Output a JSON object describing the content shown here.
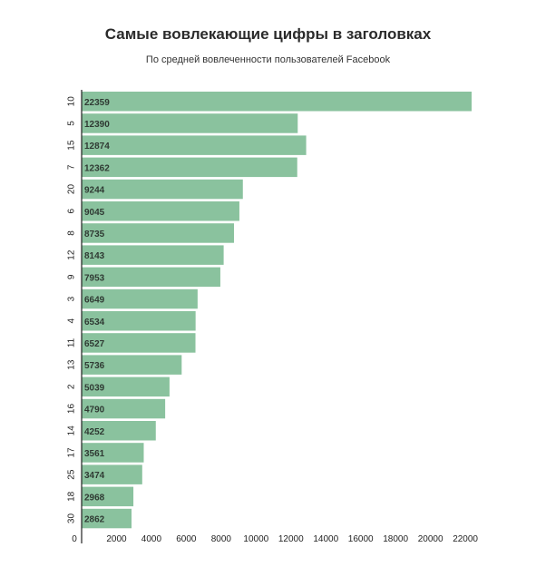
{
  "chart_data": {
    "type": "bar",
    "orientation": "horizontal",
    "title": "Самые вовлекающие цифры в заголовках",
    "subtitle": "По средней вовлеченности пользователей Facebook",
    "categories": [
      "10",
      "5",
      "15",
      "7",
      "20",
      "6",
      "8",
      "12",
      "9",
      "3",
      "4",
      "11",
      "13",
      "2",
      "16",
      "14",
      "17",
      "25",
      "18",
      "30"
    ],
    "values": [
      22359,
      12390,
      12874,
      12362,
      9244,
      9045,
      8735,
      8143,
      7953,
      6649,
      6534,
      6527,
      5736,
      5039,
      4790,
      4252,
      3561,
      3474,
      2968,
      2862
    ],
    "value_labels": [
      "22359",
      "12390",
      "12874",
      "12362",
      "9244",
      "9045",
      "8735",
      "8143",
      "7953",
      "6649",
      "6534",
      "6527",
      "5736",
      "5039",
      "4790",
      "4252",
      "3561",
      "3474",
      "2968",
      "2862"
    ],
    "xlim": [
      0,
      22359
    ],
    "x_ticks": [
      "0",
      "2000",
      "4000",
      "6000",
      "8000",
      "10000",
      "12000",
      "14000",
      "16000",
      "18000",
      "20000",
      "22000"
    ],
    "bar_color": "#8ac29e",
    "grid": false
  }
}
